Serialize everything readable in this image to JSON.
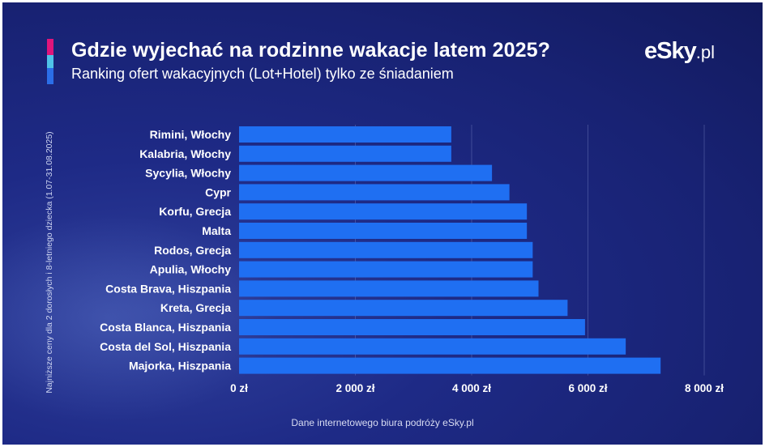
{
  "header": {
    "title": "Gdzie wyjechać na rodzinne wakacje latem 2025?",
    "subtitle": "Ranking ofert wakacyjnych (Lot+Hotel) tylko ze śniadaniem",
    "logo_main": "eSky",
    "logo_suffix": ".pl"
  },
  "footer": {
    "source": "Dane internetowego biura podróży eSky.pl"
  },
  "colors": {
    "bar": "#1f6ff2",
    "background": "#1b257a",
    "accent_pink": "#e0157b",
    "accent_cyan": "#4fc3e8",
    "accent_blue": "#2b6ee8"
  },
  "chart_data": {
    "type": "bar",
    "orientation": "horizontal",
    "title": "Gdzie wyjechać na rodzinne wakacje latem 2025?",
    "subtitle": "Ranking ofert wakacyjnych (Lot+Hotel) tylko ze śniadaniem",
    "ylabel": "Najniższe ceny dla 2 dorosłych i 8-letniego dziecka (1.07-31.08.2025)",
    "xlabel": "",
    "categories": [
      "Rimini, Włochy",
      "Kalabria, Włochy",
      "Sycylia, Włochy",
      "Cypr",
      "Korfu, Grecja",
      "Malta",
      "Rodos, Grecja",
      "Apulia, Włochy",
      "Costa Brava, Hiszpania",
      "Kreta, Grecja",
      "Costa Blanca, Hiszpania",
      "Costa del Sol, Hiszpania",
      "Majorka, Hiszpania"
    ],
    "values": [
      3650,
      3650,
      4350,
      4650,
      4950,
      4950,
      5050,
      5050,
      5150,
      5650,
      5950,
      6650,
      7250
    ],
    "xlim": [
      0,
      8000
    ],
    "xticks": [
      0,
      2000,
      4000,
      6000,
      8000
    ],
    "xtick_labels": [
      "0 zł",
      "2 000 zł",
      "4 000 zł",
      "6 000 zł",
      "8 000 zł"
    ],
    "grid": true
  }
}
